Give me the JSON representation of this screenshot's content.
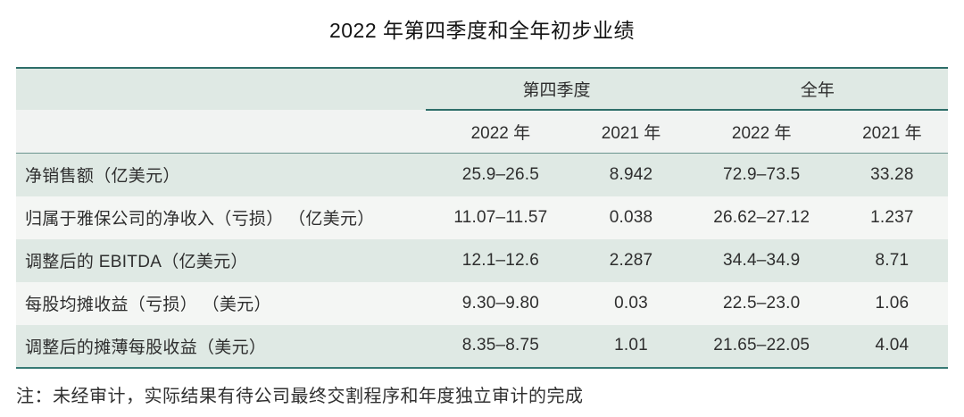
{
  "title": "2022 年第四季度和全年初步业绩",
  "table": {
    "group_headers": [
      {
        "label": "第四季度"
      },
      {
        "label": "全年"
      }
    ],
    "sub_headers": [
      "2022 年",
      "2021 年",
      "2022 年",
      "2021 年"
    ],
    "rows": [
      {
        "label": "净销售额（亿美元）",
        "values": [
          "25.9–26.5",
          "8.942",
          "72.9–73.5",
          "33.28"
        ]
      },
      {
        "label": "归属于雅保公司的净收入（亏损） （亿美元）",
        "values": [
          "11.07–11.57",
          "0.038",
          "26.62–27.12",
          "1.237"
        ]
      },
      {
        "label": "调整后的 EBITDA（亿美元）",
        "values": [
          "12.1–12.6",
          "2.287",
          "34.4–34.9",
          "8.71"
        ]
      },
      {
        "label": "每股均摊收益（亏损） （美元）",
        "values": [
          "9.30–9.80",
          "0.03",
          "22.5–23.0",
          "1.06"
        ]
      },
      {
        "label": "调整后的摊薄每股收益（美元）",
        "values": [
          "8.35–8.75",
          "1.01",
          "21.65–22.05",
          "4.04"
        ]
      }
    ]
  },
  "note": "注：未经审计，实际结果有待公司最终交割程序和年度独立审计的完成",
  "colors": {
    "border_teal_dark": "#2e6e69",
    "border_teal_bottom": "#377a74",
    "row_green": "#dfe9e4",
    "row_light": "#f4f6f4",
    "subheader_bg": "#f1f3f2"
  }
}
